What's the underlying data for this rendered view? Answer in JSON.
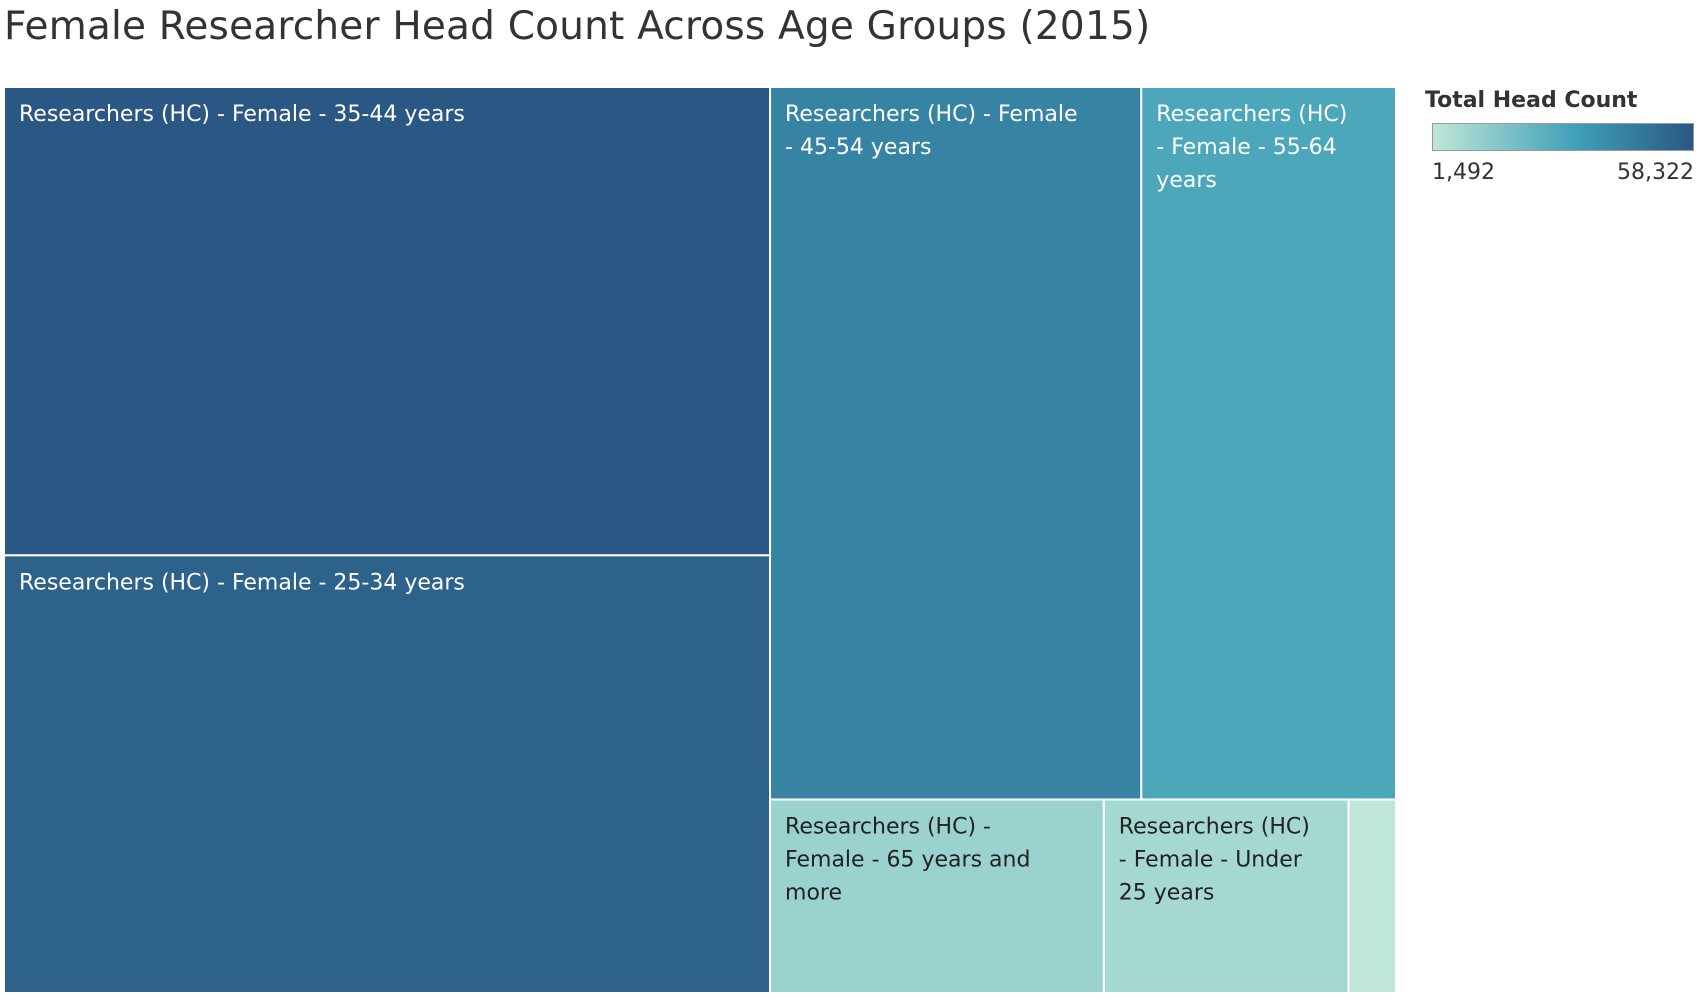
{
  "title": "Female Researcher Head Count Across Age Groups (2015)",
  "chart_data": {
    "type": "treemap",
    "title": "Female Researcher Head Count Across Age Groups (2015)",
    "legend": {
      "title": "Total Head Count",
      "min_label": "1,492",
      "max_label": "58,322",
      "min": 1492,
      "max": 58322,
      "color_low": "#bfe6d8",
      "color_mid": "#40a0b8",
      "color_high": "#2a5783",
      "placement": "top-right"
    },
    "nodes": [
      {
        "label": "Researchers (HC) - Female - 35-44 years",
        "value": 58322
      },
      {
        "label": "Researchers (HC) - Female - 25-34 years",
        "value": 54500
      },
      {
        "label": "Researchers (HC) - Female - 45-54 years",
        "value": 43000
      },
      {
        "label": "Researchers (HC) - Female - 55-64 years",
        "value": 29500
      },
      {
        "label": "Researchers (HC) - Female - 65 years and more",
        "value": 10500
      },
      {
        "label": "Researchers (HC) - Female - Under 25 years",
        "value": 7700
      },
      {
        "label": "",
        "value": 1492
      }
    ]
  }
}
